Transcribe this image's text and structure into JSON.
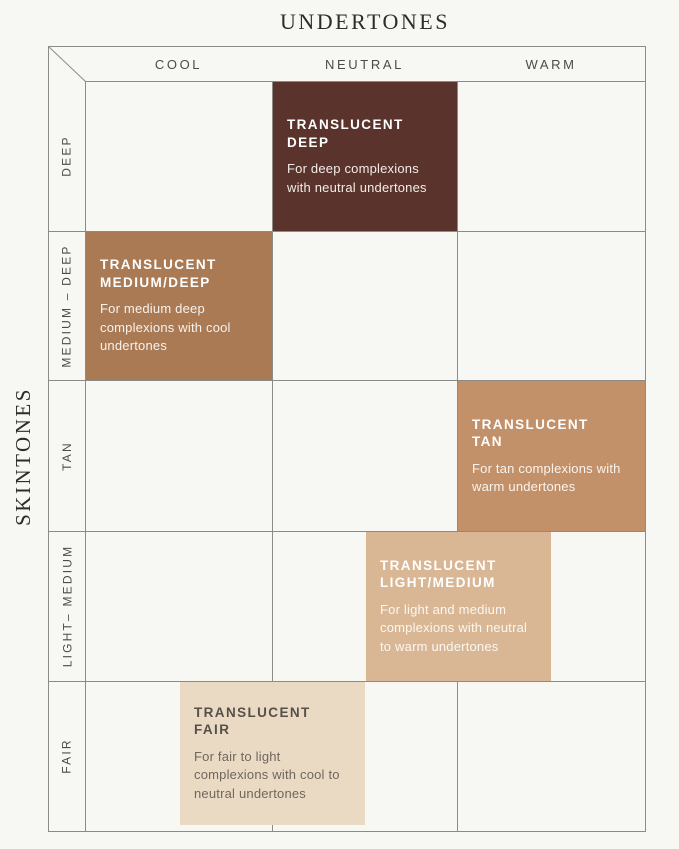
{
  "title": "UNDERTONES",
  "axis": {
    "x_title": "UNDERTONES",
    "y_title": "SKINTONES"
  },
  "columns": [
    "COOL",
    "NEUTRAL",
    "WARM"
  ],
  "rows": [
    "DEEP",
    "MEDIUM – DEEP",
    "TAN",
    "LIGHT– MEDIUM",
    "FAIR"
  ],
  "products": [
    {
      "name": "TRANSLUCENT\nDEEP",
      "description": "For deep complexions with neutral undertones",
      "skintone": "DEEP",
      "undertones": [
        "NEUTRAL"
      ],
      "swatch_color": "#5a342c",
      "heading_color": "#ffffff",
      "body_color": "#f3ece7"
    },
    {
      "name": "TRANSLUCENT\nMEDIUM/DEEP",
      "description": "For medium deep complexions with cool undertones",
      "skintone": "MEDIUM – DEEP",
      "undertones": [
        "COOL"
      ],
      "swatch_color": "#aa7a55",
      "heading_color": "#ffffff",
      "body_color": "#f8f2ec"
    },
    {
      "name": "TRANSLUCENT\nTAN",
      "description": "For tan complexions with warm undertones",
      "skintone": "TAN",
      "undertones": [
        "WARM"
      ],
      "swatch_color": "#c29169",
      "heading_color": "#ffffff",
      "body_color": "#faf4ee"
    },
    {
      "name": "TRANSLUCENT\nLIGHT/MEDIUM",
      "description": "For light and medium complexions with neutral to warm undertones",
      "skintone": "LIGHT– MEDIUM",
      "undertones": [
        "NEUTRAL",
        "WARM"
      ],
      "swatch_color": "#d9b795",
      "heading_color": "#ffffff",
      "body_color": "#fbf7f1"
    },
    {
      "name": "TRANSLUCENT\nFAIR",
      "description": "For fair to light complexions with cool to neutral undertones",
      "skintone": "FAIR",
      "undertones": [
        "COOL",
        "NEUTRAL"
      ],
      "swatch_color": "#ebdac3",
      "heading_color": "#55504a",
      "body_color": "#6e675e"
    }
  ],
  "colors": {
    "background": "#f7f7f4",
    "grid_line": "#8d8b86",
    "label_text": "#4d4b47",
    "title_text": "#2e2c29"
  }
}
